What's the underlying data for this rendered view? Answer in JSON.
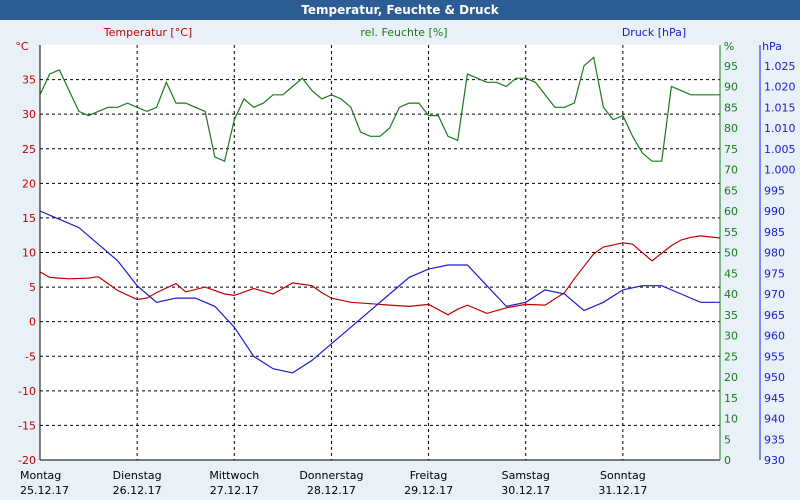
{
  "title": "Temperatur, Feuchte & Druck",
  "chart_data": {
    "type": "line",
    "title": "Temperatur, Feuchte & Druck",
    "axes": {
      "temperature": {
        "label": "Temperatur [°C]",
        "unit": "°C",
        "range": [
          -20,
          40
        ],
        "ticks": [
          "-20",
          "-15",
          "-10",
          "-5",
          "0",
          "5",
          "10",
          "15",
          "20",
          "25",
          "30",
          "35"
        ],
        "color": "#c00000"
      },
      "humidity": {
        "label": "rel. Feuchte [%]",
        "unit": "%",
        "range": [
          0,
          100
        ],
        "ticks": [
          "0",
          "5",
          "10",
          "15",
          "20",
          "25",
          "30",
          "35",
          "40",
          "45",
          "50",
          "55",
          "60",
          "65",
          "70",
          "75",
          "80",
          "85",
          "90",
          "95"
        ],
        "color": "#1a7a1a"
      },
      "pressure": {
        "label": "Druck [hPa]",
        "unit": "hPa",
        "range": [
          930,
          1030
        ],
        "ticks": [
          "930",
          "935",
          "940",
          "945",
          "950",
          "955",
          "960",
          "965",
          "970",
          "975",
          "980",
          "985",
          "990",
          "995",
          "1.000",
          "1.005",
          "1.010",
          "1.015",
          "1.020",
          "1.025"
        ],
        "color": "#1a1ad0"
      }
    },
    "x_labels": [
      {
        "day": "Montag",
        "date": "25.12.17"
      },
      {
        "day": "Dienstag",
        "date": "26.12.17"
      },
      {
        "day": "Mittwoch",
        "date": "27.12.17"
      },
      {
        "day": "Donnerstag",
        "date": "28.12.17"
      },
      {
        "day": "Freitag",
        "date": "29.12.17"
      },
      {
        "day": "Samstag",
        "date": "30.12.17"
      },
      {
        "day": "Sonntag",
        "date": "31.12.17"
      }
    ],
    "grid": true,
    "series": [
      {
        "name": "Temperatur [°C]",
        "axis": "temperature",
        "color": "#c00000",
        "x": [
          0,
          0.1,
          0.2,
          0.3,
          0.5,
          0.6,
          0.8,
          1,
          1.1,
          1.2,
          1.4,
          1.5,
          1.7,
          1.9,
          2,
          2.2,
          2.4,
          2.6,
          2.8,
          2.9,
          3,
          3.2,
          3.4,
          3.6,
          3.8,
          4,
          4.2,
          4.3,
          4.4,
          4.6,
          4.8,
          5,
          5.2,
          5.4,
          5.5,
          5.7,
          5.8,
          6,
          6.1,
          6.3,
          6.5,
          6.6,
          6.7,
          6.8,
          7
        ],
        "values": [
          7.2,
          6.4,
          6.3,
          6.2,
          6.3,
          6.5,
          4.5,
          3.2,
          3.4,
          4.2,
          5.5,
          4.3,
          5,
          4,
          3.8,
          4.8,
          4,
          5.6,
          5.2,
          4.2,
          3.4,
          2.8,
          2.6,
          2.4,
          2.2,
          2.5,
          1,
          1.8,
          2.4,
          1.2,
          2,
          2.5,
          2.4,
          4.2,
          6.2,
          9.8,
          10.8,
          11.4,
          11.2,
          8.8,
          11,
          11.8,
          12.2,
          12.4,
          12.1
        ]
      },
      {
        "name": "rel. Feuchte [%]",
        "axis": "humidity",
        "color": "#1a7a1a",
        "x": [
          0,
          0.1,
          0.2,
          0.3,
          0.4,
          0.5,
          0.6,
          0.7,
          0.8,
          0.9,
          1,
          1.1,
          1.2,
          1.3,
          1.4,
          1.5,
          1.6,
          1.7,
          1.8,
          1.9,
          2,
          2.1,
          2.2,
          2.3,
          2.4,
          2.5,
          2.6,
          2.7,
          2.8,
          2.9,
          3,
          3.1,
          3.2,
          3.3,
          3.4,
          3.5,
          3.6,
          3.7,
          3.8,
          3.9,
          4,
          4.1,
          4.2,
          4.3,
          4.4,
          4.5,
          4.6,
          4.7,
          4.8,
          4.9,
          5,
          5.1,
          5.2,
          5.3,
          5.4,
          5.5,
          5.6,
          5.7,
          5.8,
          5.9,
          6,
          6.1,
          6.2,
          6.3,
          6.4,
          6.5,
          6.6,
          6.7,
          6.8,
          6.9,
          7
        ],
        "values": [
          88,
          93,
          94,
          89,
          84,
          83,
          84,
          85,
          85,
          86,
          85,
          84,
          85,
          91,
          86,
          86,
          85,
          84,
          73,
          72,
          82,
          87,
          85,
          86,
          88,
          88,
          90,
          92,
          89,
          87,
          88,
          87,
          85,
          79,
          78,
          78,
          80,
          85,
          86,
          86,
          83,
          83,
          78,
          77,
          93,
          92,
          91,
          91,
          90,
          92,
          92,
          91,
          88,
          85,
          85,
          86,
          95,
          97,
          85,
          82,
          83,
          78,
          74,
          72,
          72,
          90,
          89,
          88,
          88,
          88,
          88
        ]
      },
      {
        "name": "Druck [hPa]",
        "axis": "pressure",
        "color": "#1a1ad0",
        "x": [
          0,
          0.2,
          0.4,
          0.6,
          0.8,
          1,
          1.2,
          1.4,
          1.6,
          1.8,
          2,
          2.2,
          2.4,
          2.6,
          2.8,
          3,
          3.2,
          3.4,
          3.6,
          3.8,
          4,
          4.2,
          4.4,
          4.6,
          4.8,
          5,
          5.2,
          5.4,
          5.6,
          5.8,
          6,
          6.2,
          6.4,
          6.6,
          6.8,
          7
        ],
        "values": [
          990,
          988,
          986,
          982,
          978,
          972,
          968,
          969,
          969,
          967,
          962,
          955,
          952,
          951,
          954,
          958,
          962,
          966,
          970,
          974,
          976,
          977,
          977,
          972,
          967,
          968,
          971,
          970,
          966,
          968,
          971,
          972,
          972,
          970,
          968,
          968
        ]
      }
    ]
  }
}
